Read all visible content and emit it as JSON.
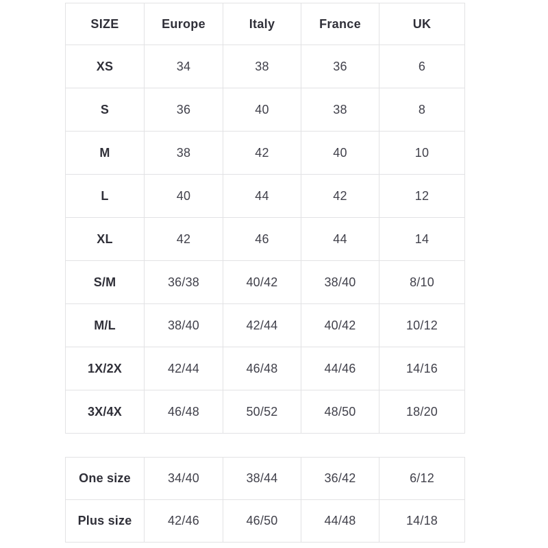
{
  "colors": {
    "background": "#ffffff",
    "border": "#e2e2e4",
    "header_text": "#2f2f38",
    "value_text": "#41414b"
  },
  "chart_data": [
    {
      "type": "table",
      "columns": [
        "SIZE",
        "Europe",
        "Italy",
        "France",
        "UK"
      ],
      "rows": [
        [
          "XS",
          "34",
          "38",
          "36",
          "6"
        ],
        [
          "S",
          "36",
          "40",
          "38",
          "8"
        ],
        [
          "M",
          "38",
          "42",
          "40",
          "10"
        ],
        [
          "L",
          "40",
          "44",
          "42",
          "12"
        ],
        [
          "XL",
          "42",
          "46",
          "44",
          "14"
        ],
        [
          "S/M",
          "36/38",
          "40/42",
          "38/40",
          "8/10"
        ],
        [
          "M/L",
          "38/40",
          "42/44",
          "40/42",
          "10/12"
        ],
        [
          "1X/2X",
          "42/44",
          "46/48",
          "44/46",
          "14/16"
        ],
        [
          "3X/4X",
          "46/48",
          "50/52",
          "48/50",
          "18/20"
        ]
      ]
    },
    {
      "type": "table",
      "columns": [],
      "rows": [
        [
          "One size",
          "34/40",
          "38/44",
          "36/42",
          "6/12"
        ],
        [
          "Plus size",
          "42/46",
          "46/50",
          "44/48",
          "14/18"
        ]
      ]
    }
  ]
}
